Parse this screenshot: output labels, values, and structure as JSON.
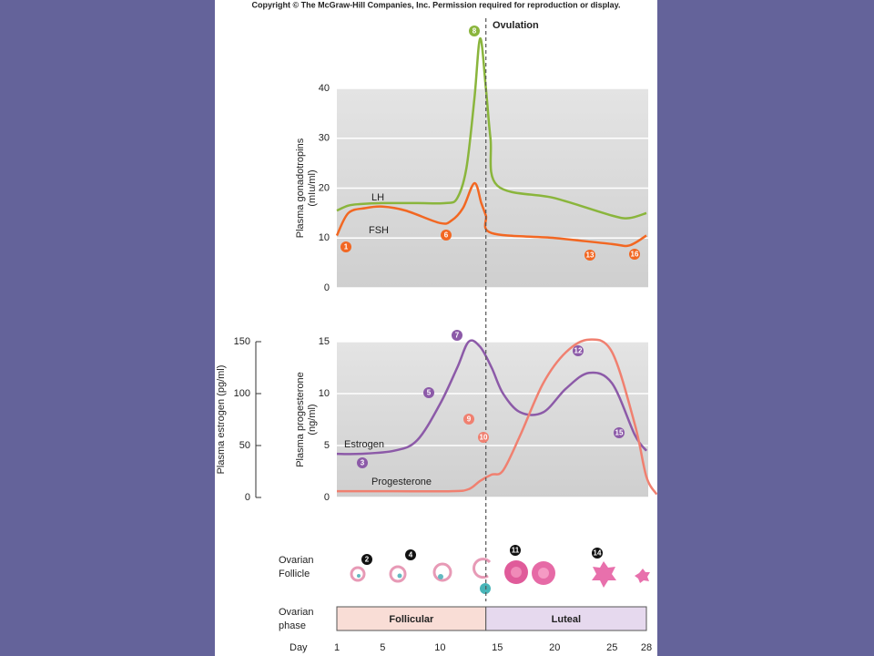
{
  "copyright": "Copyright © The McGraw-Hill Companies, Inc. Permission required for reproduction or display.",
  "ovulation": {
    "label": "Ovulation",
    "day": 14
  },
  "chart_data": [
    {
      "type": "line",
      "y_label": [
        "Plasma gonadotropins",
        "(mIu/ml)"
      ],
      "xlim": [
        1,
        28
      ],
      "ylim": [
        0,
        40
      ],
      "yticks": [
        0,
        10,
        20,
        30,
        40
      ],
      "grid": true,
      "series": [
        {
          "name": "LH",
          "color": "#8ab53c",
          "x": [
            1,
            2,
            3,
            5,
            8,
            10.5,
            11.5,
            12.3,
            13,
            13.5,
            14,
            14.4,
            15,
            20,
            25,
            26.5,
            28
          ],
          "values": [
            15.5,
            16.5,
            16.8,
            17,
            17,
            17,
            18,
            24,
            38,
            50,
            40,
            30,
            20.5,
            18,
            14.5,
            14,
            15
          ]
        },
        {
          "name": "FSH",
          "color": "#f26722",
          "x": [
            1,
            2,
            3.5,
            5,
            7,
            10,
            11,
            12,
            13,
            13.6,
            14,
            14.5,
            20,
            25,
            26.5,
            28
          ],
          "values": [
            10.5,
            15,
            16,
            16.3,
            15.5,
            13,
            13.5,
            16,
            21,
            17,
            14.5,
            11,
            10,
            8.8,
            8.5,
            10.5
          ]
        }
      ]
    },
    {
      "type": "line",
      "y_label": [
        "Plasma progesterone",
        "(ng/ml)"
      ],
      "y2_label": "Plasma estrogen (pg/ml)",
      "xlim": [
        1,
        28
      ],
      "xticks": [
        1,
        5,
        10,
        15,
        20,
        25,
        28
      ],
      "x_label": "Day",
      "ylim": [
        0,
        15
      ],
      "yticks": [
        0,
        5,
        10,
        15
      ],
      "y2lim": [
        0,
        150
      ],
      "y2ticks": [
        0,
        50,
        100,
        150
      ],
      "grid": true,
      "series": [
        {
          "name": "Estrogen",
          "color": "#8c5aa8",
          "axis": "y2",
          "x": [
            1,
            3,
            6,
            8,
            10,
            11.5,
            12.5,
            13.5,
            14.5,
            15.5,
            17,
            19,
            21,
            23,
            25,
            27,
            28
          ],
          "values": [
            42,
            42,
            45,
            55,
            90,
            125,
            150,
            145,
            125,
            100,
            82,
            82,
            105,
            120,
            110,
            60,
            45
          ]
        },
        {
          "name": "Progesterone",
          "color": "#f08070",
          "x": [
            1,
            6,
            11,
            12.5,
            13.5,
            14.5,
            15.5,
            17,
            19,
            21,
            23,
            25,
            27,
            28,
            28.9
          ],
          "values": [
            0.6,
            0.6,
            0.6,
            0.8,
            1.6,
            2.2,
            2.6,
            6,
            11,
            14,
            15.2,
            14,
            7,
            2,
            0.3
          ]
        }
      ]
    }
  ],
  "markers": [
    {
      "label": "8",
      "color": "#8ab53c"
    },
    {
      "label": "1",
      "color": "#f26722"
    },
    {
      "label": "6",
      "color": "#f26722"
    },
    {
      "label": "13",
      "color": "#f26722"
    },
    {
      "label": "16",
      "color": "#f26722"
    },
    {
      "label": "7",
      "color": "#8c5aa8"
    },
    {
      "label": "5",
      "color": "#8c5aa8"
    },
    {
      "label": "3",
      "color": "#8c5aa8"
    },
    {
      "label": "9",
      "color": "#f08070"
    },
    {
      "label": "10",
      "color": "#f08070"
    },
    {
      "label": "12",
      "color": "#8c5aa8"
    },
    {
      "label": "15",
      "color": "#8c5aa8"
    },
    {
      "label": "2",
      "color": "#111111"
    },
    {
      "label": "4",
      "color": "#111111"
    },
    {
      "label": "11",
      "color": "#111111"
    },
    {
      "label": "14",
      "color": "#111111"
    }
  ],
  "follicle": {
    "label": [
      "Ovarian",
      "Follicle"
    ]
  },
  "phase": {
    "label": [
      "Ovarian",
      "phase"
    ],
    "segments": [
      {
        "name": "Follicular",
        "start": 1,
        "end": 14,
        "color": "#f9ddd6"
      },
      {
        "name": "Luteal",
        "start": 14,
        "end": 28,
        "color": "#e6d9ee"
      }
    ]
  }
}
